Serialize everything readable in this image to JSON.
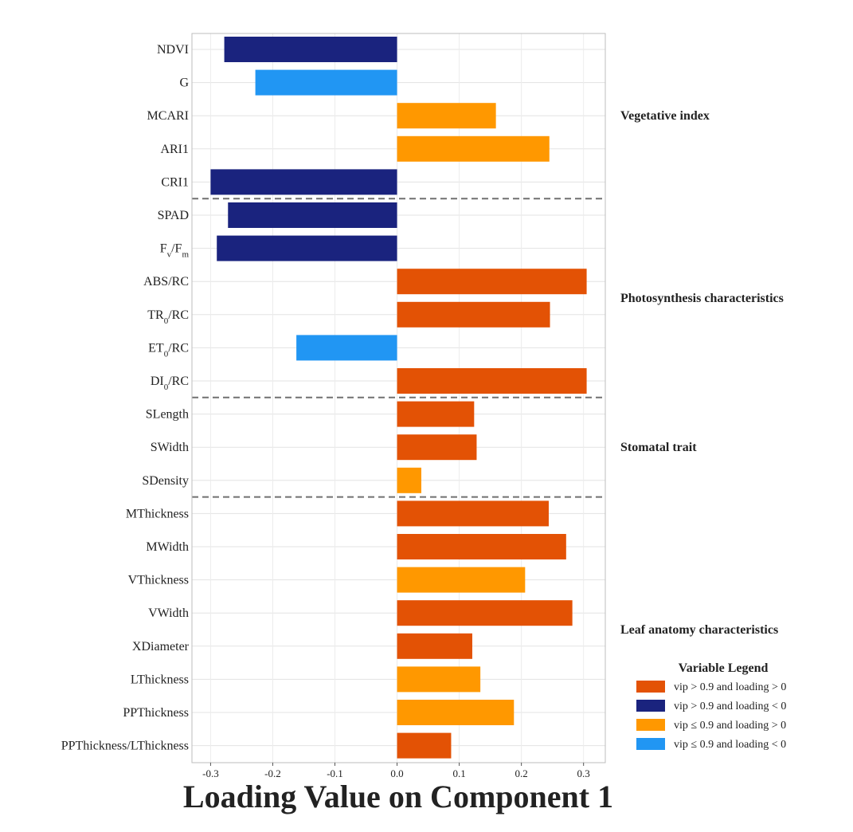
{
  "chart_data": {
    "type": "bar",
    "orientation": "horizontal",
    "xlabel": "Loading Value on Component 1",
    "xlim": [
      -0.33,
      0.335
    ],
    "xticks": [
      -0.3,
      -0.2,
      -0.1,
      0.0,
      0.1,
      0.2,
      0.3
    ],
    "xtick_labels": [
      "-0.3",
      "-0.2",
      "-0.1",
      "0.0",
      "0.1",
      "0.2",
      "0.3"
    ],
    "grid": true,
    "legend": {
      "position": "bottom-right",
      "title": "Variable Legend",
      "entries": [
        {
          "key": "pos_high",
          "label": "vip > 0.9 and loading > 0",
          "color": "#E35205"
        },
        {
          "key": "neg_high",
          "label": "vip > 0.9 and loading < 0",
          "color": "#1A237E"
        },
        {
          "key": "pos_low",
          "label": "vip ≤ 0.9 and loading > 0",
          "color": "#FF9800"
        },
        {
          "key": "neg_low",
          "label": "vip ≤ 0.9 and loading < 0",
          "color": "#2196F3"
        }
      ]
    },
    "bars": [
      {
        "label": "NDVI",
        "sub": "",
        "suffix": "",
        "value": -0.278,
        "class": "neg_high"
      },
      {
        "label": "G",
        "sub": "",
        "suffix": "",
        "value": -0.228,
        "class": "neg_low"
      },
      {
        "label": "MCARI",
        "sub": "",
        "suffix": "",
        "value": 0.159,
        "class": "pos_low"
      },
      {
        "label": "ARI1",
        "sub": "",
        "suffix": "",
        "value": 0.245,
        "class": "pos_low"
      },
      {
        "label": "CRI1",
        "sub": "",
        "suffix": "",
        "value": -0.3,
        "class": "neg_high"
      },
      {
        "label": "SPAD",
        "sub": "",
        "suffix": "",
        "value": -0.272,
        "class": "neg_high"
      },
      {
        "label": "F",
        "sub": "v",
        "suffix": "/F",
        "sub2": "m",
        "value": -0.29,
        "class": "neg_high"
      },
      {
        "label": "ABS/RC",
        "sub": "",
        "suffix": "",
        "value": 0.305,
        "class": "pos_high"
      },
      {
        "label": "TR",
        "sub": "0",
        "suffix": "/RC",
        "value": 0.246,
        "class": "pos_high"
      },
      {
        "label": "ET",
        "sub": "0",
        "suffix": "/RC",
        "value": -0.162,
        "class": "neg_low"
      },
      {
        "label": "DI",
        "sub": "0",
        "suffix": "/RC",
        "value": 0.305,
        "class": "pos_high"
      },
      {
        "label": "SLength",
        "sub": "",
        "suffix": "",
        "value": 0.124,
        "class": "pos_high"
      },
      {
        "label": "SWidth",
        "sub": "",
        "suffix": "",
        "value": 0.128,
        "class": "pos_high"
      },
      {
        "label": "SDensity",
        "sub": "",
        "suffix": "",
        "value": 0.039,
        "class": "pos_low"
      },
      {
        "label": "MThickness",
        "sub": "",
        "suffix": "",
        "value": 0.244,
        "class": "pos_high"
      },
      {
        "label": "MWidth",
        "sub": "",
        "suffix": "",
        "value": 0.272,
        "class": "pos_high"
      },
      {
        "label": "VThickness",
        "sub": "",
        "suffix": "",
        "value": 0.206,
        "class": "pos_low"
      },
      {
        "label": "VWidth",
        "sub": "",
        "suffix": "",
        "value": 0.282,
        "class": "pos_high"
      },
      {
        "label": "XDiameter",
        "sub": "",
        "suffix": "",
        "value": 0.121,
        "class": "pos_high"
      },
      {
        "label": "LThickness",
        "sub": "",
        "suffix": "",
        "value": 0.134,
        "class": "pos_low"
      },
      {
        "label": "PPThickness",
        "sub": "",
        "suffix": "",
        "value": 0.188,
        "class": "pos_low"
      },
      {
        "label": "PPThickness/LThickness",
        "sub": "",
        "suffix": "",
        "value": 0.087,
        "class": "pos_high"
      }
    ],
    "groups": [
      {
        "name": "Vegetative index",
        "start": 0,
        "end": 4
      },
      {
        "name": "Photosynthesis characteristics",
        "start": 5,
        "end": 10
      },
      {
        "name": "Stomatal trait",
        "start": 11,
        "end": 13
      },
      {
        "name": "Leaf anatomy characteristics",
        "start": 14,
        "end": 21
      }
    ]
  }
}
